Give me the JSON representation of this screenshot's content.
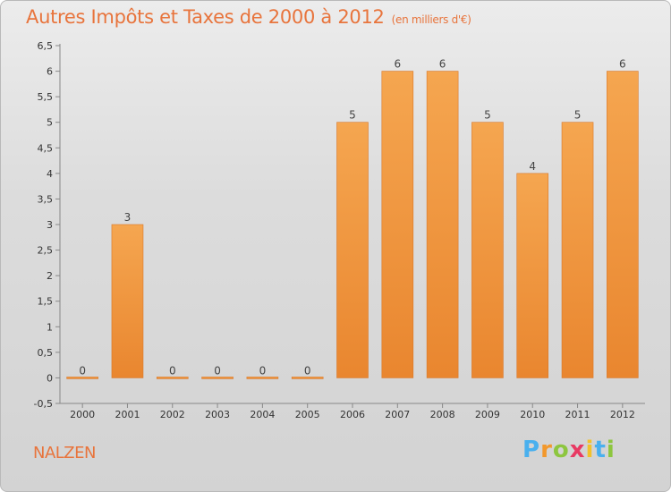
{
  "chart_data": {
    "type": "bar",
    "title": "Autres Impôts et Taxes de 2000 à 2012",
    "subtitle": "(en milliers d'€)",
    "categories": [
      "2000",
      "2001",
      "2002",
      "2003",
      "2004",
      "2005",
      "2006",
      "2007",
      "2008",
      "2009",
      "2010",
      "2011",
      "2012"
    ],
    "values": [
      0,
      3,
      0,
      0,
      0,
      0,
      5,
      6,
      6,
      5,
      4,
      5,
      6
    ],
    "ylim": [
      -0.5,
      6.5
    ],
    "yticks": [
      "-0,5",
      "0",
      "0,5",
      "1",
      "1,5",
      "2",
      "2,5",
      "3",
      "3,5",
      "4",
      "4,5",
      "5",
      "5,5",
      "6",
      "6,5"
    ],
    "grid": false,
    "bar_color": "#e9862f",
    "bar_color_light": "#f5a650"
  },
  "place_name": "NALZEN",
  "logo": {
    "text": "Proxiti",
    "letters": [
      "P",
      "r",
      "o",
      "x",
      "i",
      "t",
      "i"
    ]
  }
}
